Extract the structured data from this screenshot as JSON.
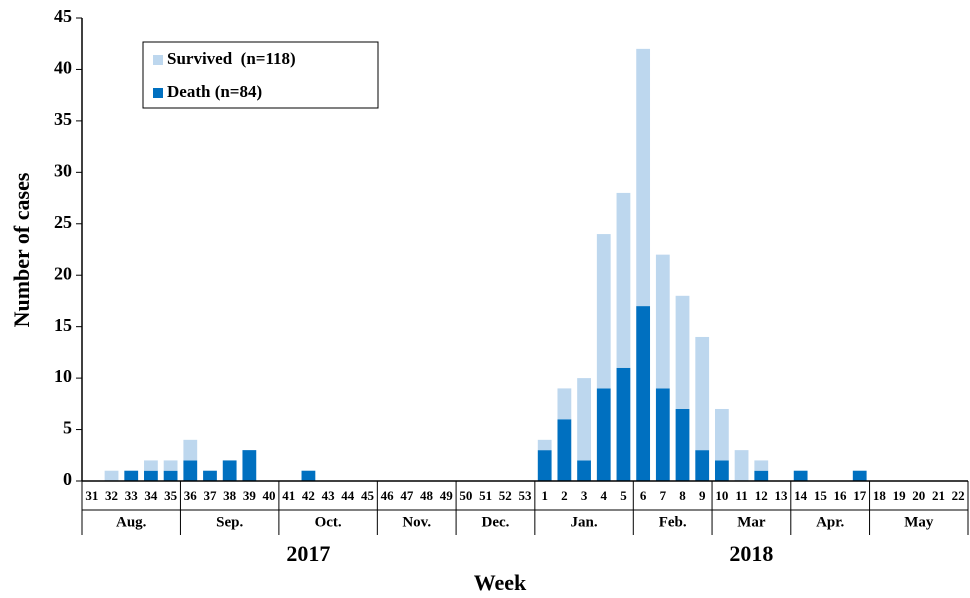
{
  "chart_data": {
    "type": "stacked_bar",
    "x_label": "Week",
    "y_label": "Number of cases",
    "categories": [
      "31",
      "32",
      "33",
      "34",
      "35",
      "36",
      "37",
      "38",
      "39",
      "40",
      "41",
      "42",
      "43",
      "44",
      "45",
      "46",
      "47",
      "48",
      "49",
      "50",
      "51",
      "52",
      "53",
      "1",
      "2",
      "3",
      "4",
      "5",
      "6",
      "7",
      "8",
      "9",
      "10",
      "11",
      "12",
      "13",
      "14",
      "15",
      "16",
      "17",
      "18",
      "19",
      "20",
      "21",
      "22"
    ],
    "series": [
      {
        "name": "Survived  (n=118)",
        "color": "#bdd7ee",
        "values": [
          0,
          1,
          0,
          1,
          1,
          2,
          0,
          0,
          0,
          0,
          0,
          0,
          0,
          0,
          0,
          0,
          0,
          0,
          0,
          0,
          0,
          0,
          0,
          1,
          3,
          8,
          15,
          17,
          25,
          13,
          11,
          11,
          5,
          3,
          1,
          0,
          0,
          0,
          0,
          0,
          0,
          0,
          0,
          0,
          0
        ]
      },
      {
        "name": "Death (n=84)",
        "color": "#0070c0",
        "values": [
          0,
          0,
          1,
          1,
          1,
          2,
          1,
          2,
          3,
          0,
          0,
          1,
          0,
          0,
          0,
          0,
          0,
          0,
          0,
          0,
          0,
          0,
          0,
          3,
          6,
          2,
          9,
          11,
          17,
          9,
          7,
          3,
          2,
          0,
          1,
          0,
          1,
          0,
          0,
          1,
          0,
          0,
          0,
          0,
          0
        ]
      }
    ],
    "month_groups": [
      {
        "label": "Aug.",
        "from": "31",
        "to": "35"
      },
      {
        "label": "Sep.",
        "from": "36",
        "to": "40"
      },
      {
        "label": "Oct.",
        "from": "41",
        "to": "45"
      },
      {
        "label": "Nov.",
        "from": "46",
        "to": "49"
      },
      {
        "label": "Dec.",
        "from": "50",
        "to": "53"
      },
      {
        "label": "Jan.",
        "from": "1",
        "to": "5"
      },
      {
        "label": "Feb.",
        "from": "6",
        "to": "9"
      },
      {
        "label": "Mar",
        "from": "10",
        "to": "13"
      },
      {
        "label": "Apr.",
        "from": "14",
        "to": "17"
      },
      {
        "label": "May",
        "from": "18",
        "to": "22"
      }
    ],
    "year_groups": [
      {
        "label": "2017",
        "from": "31",
        "to": "53"
      },
      {
        "label": "2018",
        "from": "1",
        "to": "22"
      }
    ],
    "ylim": [
      0,
      45
    ],
    "yticks": [
      0,
      5,
      10,
      15,
      20,
      25,
      30,
      35,
      40,
      45
    ],
    "legend": "upper-left",
    "grid": false
  }
}
